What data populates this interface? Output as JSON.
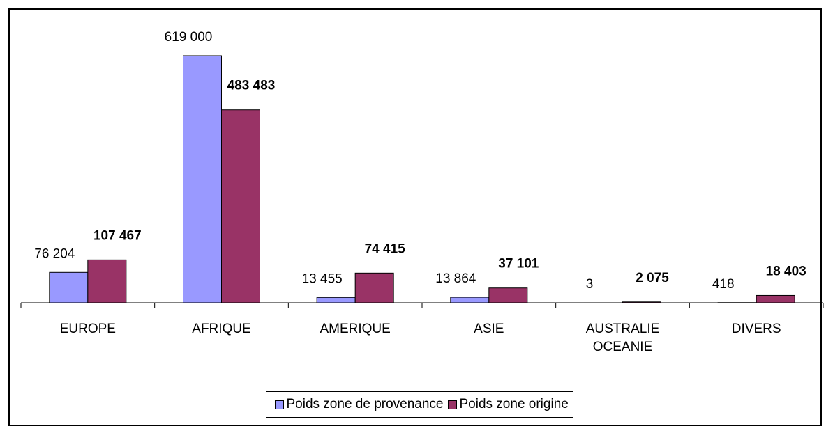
{
  "chart_data": {
    "type": "bar",
    "categories": [
      "EUROPE",
      "AFRIQUE",
      "AMERIQUE",
      "ASIE",
      "AUSTRALIE OCEANIE",
      "DIVERS"
    ],
    "series": [
      {
        "name": "Poids zone de provenance",
        "color": "#9999ff",
        "values": [
          76204,
          619000,
          13455,
          13864,
          3,
          418
        ],
        "value_labels": [
          "76 204",
          "619 000",
          "13 455",
          "13 864",
          "3",
          "418"
        ]
      },
      {
        "name": "Poids zone origine",
        "color": "#993366",
        "values": [
          107467,
          483483,
          74415,
          37101,
          2075,
          18403
        ],
        "value_labels": [
          "107 467",
          "483 483",
          "74 415",
          "37 101",
          "2 075",
          "18 403"
        ]
      }
    ]
  }
}
